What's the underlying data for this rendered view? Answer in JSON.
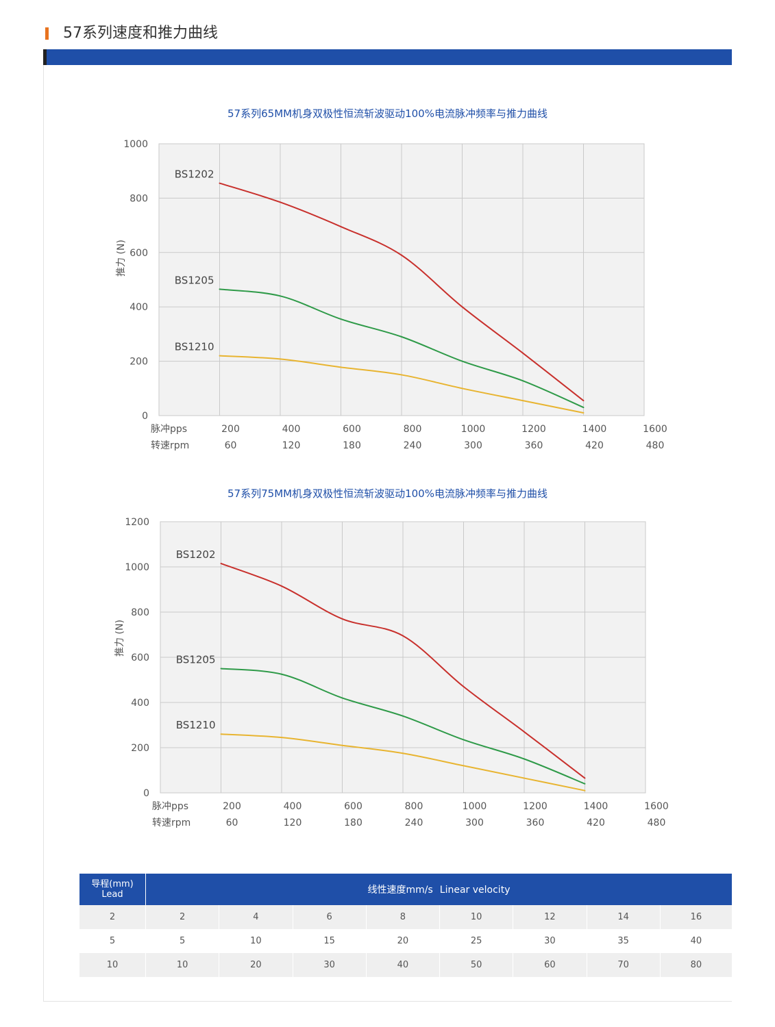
{
  "page": {
    "title": "57系列速度和推力曲线",
    "accent_color": "#e8731f",
    "band_color": "#1f4fa8"
  },
  "chart_data": [
    {
      "type": "line",
      "title": "57系列65MM机身双极性恒流斩波驱动100%电流脉冲频率与推力曲线",
      "ylabel": "推力 (N)",
      "ylim": [
        0,
        1000
      ],
      "yticks": [
        "1000",
        "800",
        "600",
        "400",
        "200",
        "0"
      ],
      "xlim": [
        0,
        1600
      ],
      "x_row_labels": [
        "脉冲pps",
        "转速rpm"
      ],
      "x_pps": [
        "200",
        "400",
        "600",
        "800",
        "1000",
        "1200",
        "1400",
        "1600"
      ],
      "x_rpm": [
        "60",
        "120",
        "180",
        "240",
        "300",
        "360",
        "420",
        "480"
      ],
      "grid": true,
      "series": [
        {
          "name": "BS1202",
          "color": "#c8302c",
          "x": [
            200,
            400,
            600,
            800,
            1000,
            1200,
            1400
          ],
          "y": [
            855,
            785,
            695,
            590,
            400,
            230,
            55
          ]
        },
        {
          "name": "BS1205",
          "color": "#2e9a48",
          "x": [
            200,
            400,
            600,
            800,
            1000,
            1200,
            1400
          ],
          "y": [
            465,
            440,
            355,
            290,
            200,
            128,
            30
          ]
        },
        {
          "name": "BS1210",
          "color": "#e8b430",
          "x": [
            200,
            400,
            600,
            800,
            1000,
            1200,
            1400
          ],
          "y": [
            220,
            208,
            178,
            150,
            100,
            55,
            10
          ]
        }
      ]
    },
    {
      "type": "line",
      "title": "57系列75MM机身双极性恒流斩波驱动100%电流脉冲频率与推力曲线",
      "ylabel": "推力 (N)",
      "ylim": [
        0,
        1200
      ],
      "yticks": [
        "1200",
        "1000",
        "800",
        "600",
        "400",
        "200",
        "0"
      ],
      "xlim": [
        0,
        1600
      ],
      "x_row_labels": [
        "脉冲pps",
        "转速rpm"
      ],
      "x_pps": [
        "200",
        "400",
        "600",
        "800",
        "1000",
        "1200",
        "1400",
        "1600"
      ],
      "x_rpm": [
        "60",
        "120",
        "180",
        "240",
        "300",
        "360",
        "420",
        "480"
      ],
      "grid": true,
      "series": [
        {
          "name": "BS1202",
          "color": "#c8302c",
          "x": [
            200,
            400,
            600,
            800,
            1000,
            1200,
            1400
          ],
          "y": [
            1015,
            915,
            770,
            695,
            470,
            270,
            65
          ]
        },
        {
          "name": "BS1205",
          "color": "#2e9a48",
          "x": [
            200,
            400,
            600,
            800,
            1000,
            1200,
            1400
          ],
          "y": [
            550,
            525,
            420,
            340,
            235,
            150,
            40
          ]
        },
        {
          "name": "BS1210",
          "color": "#e8b430",
          "x": [
            200,
            400,
            600,
            800,
            1000,
            1200,
            1400
          ],
          "y": [
            260,
            245,
            210,
            175,
            120,
            65,
            10
          ]
        }
      ]
    }
  ],
  "velocity_table": {
    "lead_header_cn": "导程(mm)",
    "lead_header_en": "Lead",
    "velocity_header_cn": "线性速度mm/s",
    "velocity_header_en": "Linear velocity",
    "header_color": "#1f4fa8",
    "rows": [
      {
        "lead": "2",
        "values": [
          "2",
          "4",
          "6",
          "8",
          "10",
          "12",
          "14",
          "16"
        ]
      },
      {
        "lead": "5",
        "values": [
          "5",
          "10",
          "15",
          "20",
          "25",
          "30",
          "35",
          "40"
        ]
      },
      {
        "lead": "10",
        "values": [
          "10",
          "20",
          "30",
          "40",
          "50",
          "60",
          "70",
          "80"
        ]
      }
    ]
  },
  "colors": {
    "title_text": "#1f4fa8",
    "grid": "#c9c9c9",
    "plot_bg": "#f2f2f2"
  }
}
